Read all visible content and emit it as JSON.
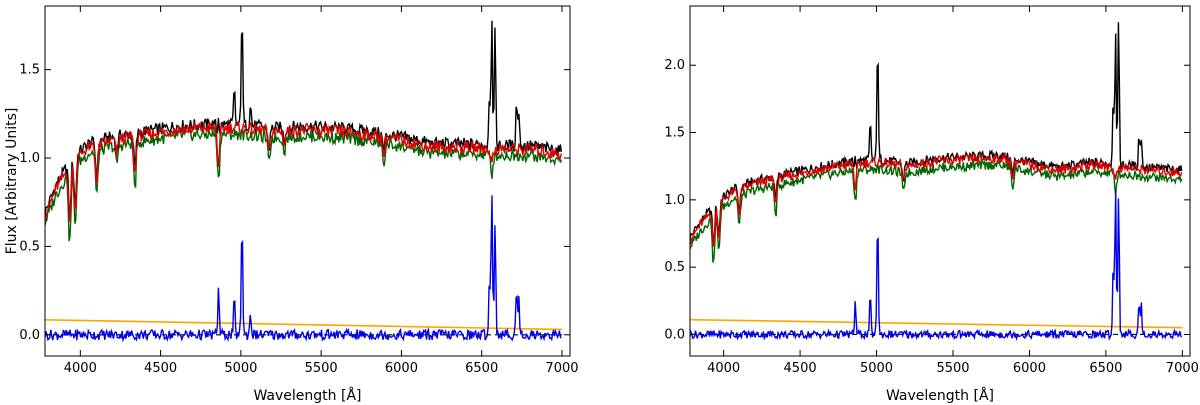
{
  "chart_data": [
    {
      "type": "line",
      "xlabel": "Wavelength [Å]",
      "ylabel": "Flux  [Arbitrary  Units]",
      "xlim": [
        3780,
        7050
      ],
      "ylim": [
        -0.12,
        1.86
      ],
      "xticks": [
        4000,
        4500,
        5000,
        5500,
        6000,
        6500,
        7000
      ],
      "yticks": [
        0.0,
        0.5,
        1.0,
        1.5
      ],
      "ytick_labels": [
        "0.0",
        "0.5",
        "1.0",
        "1.5"
      ],
      "continuum": {
        "x": [
          3780,
          3850,
          3950,
          4050,
          4200,
          4400,
          4600,
          4800,
          5000,
          5200,
          5400,
          5600,
          5800,
          6000,
          6200,
          6400,
          6600,
          6800,
          7000
        ],
        "y": [
          0.67,
          0.83,
          0.98,
          1.06,
          1.1,
          1.13,
          1.16,
          1.17,
          1.17,
          1.15,
          1.16,
          1.15,
          1.13,
          1.1,
          1.06,
          1.06,
          1.05,
          1.05,
          1.02
        ]
      },
      "absorption": [
        [
          3934,
          0.4
        ],
        [
          3968,
          0.35
        ],
        [
          4102,
          0.25
        ],
        [
          4226,
          0.1
        ],
        [
          4340,
          0.25
        ],
        [
          4861,
          0.25
        ],
        [
          5175,
          0.15
        ],
        [
          5270,
          0.08
        ],
        [
          5890,
          0.12
        ],
        [
          6563,
          0.1
        ]
      ],
      "emission": [
        [
          3727,
          0.2
        ],
        [
          4861,
          0.26
        ],
        [
          4959,
          0.2
        ],
        [
          5007,
          0.67
        ],
        [
          5060,
          0.13
        ],
        [
          6548,
          0.3
        ],
        [
          6563,
          0.83
        ],
        [
          6583,
          0.65
        ],
        [
          6717,
          0.26
        ],
        [
          6731,
          0.2
        ]
      ],
      "baseline": {
        "x": [
          3780,
          7000
        ],
        "y": [
          0.085,
          0.03
        ]
      },
      "series": [
        {
          "key": "observed",
          "color": "#000000",
          "offset": 0.02
        },
        {
          "key": "model_red",
          "color": "#e00000",
          "offset": 0.0
        },
        {
          "key": "model_green",
          "color": "#006400",
          "offset": -0.035
        },
        {
          "key": "residual",
          "color": "#0000e6"
        },
        {
          "key": "baseline",
          "color": "#ffa500"
        }
      ],
      "grid": false,
      "legend": "none"
    },
    {
      "type": "line",
      "xlabel": "Wavelength [Å]",
      "ylabel": "",
      "xlim": [
        3780,
        7050
      ],
      "ylim": [
        -0.16,
        2.44
      ],
      "xticks": [
        4000,
        4500,
        5000,
        5500,
        6000,
        6500,
        7000
      ],
      "yticks": [
        0.0,
        0.5,
        1.0,
        1.5,
        2.0
      ],
      "ytick_labels": [
        "0.0",
        "0.5",
        "1.0",
        "1.5",
        "2.0"
      ],
      "continuum": {
        "x": [
          3780,
          3850,
          3950,
          4050,
          4200,
          4400,
          4600,
          4800,
          5000,
          5200,
          5400,
          5600,
          5800,
          6000,
          6200,
          6400,
          6600,
          6800,
          7000
        ],
        "y": [
          0.7,
          0.82,
          0.95,
          1.05,
          1.12,
          1.17,
          1.22,
          1.26,
          1.28,
          1.25,
          1.29,
          1.3,
          1.31,
          1.26,
          1.22,
          1.26,
          1.24,
          1.22,
          1.2
        ]
      },
      "absorption": [
        [
          3934,
          0.35
        ],
        [
          3968,
          0.3
        ],
        [
          4102,
          0.22
        ],
        [
          4340,
          0.22
        ],
        [
          4861,
          0.22
        ],
        [
          5175,
          0.15
        ],
        [
          5890,
          0.15
        ],
        [
          6563,
          0.12
        ]
      ],
      "emission": [
        [
          3727,
          0.14
        ],
        [
          4861,
          0.24
        ],
        [
          4959,
          0.28
        ],
        [
          5007,
          0.9
        ],
        [
          6548,
          0.5
        ],
        [
          6563,
          1.12
        ],
        [
          6583,
          1.05
        ],
        [
          6717,
          0.24
        ],
        [
          6731,
          0.22
        ]
      ],
      "baseline": {
        "x": [
          3780,
          7000
        ],
        "y": [
          0.11,
          0.05
        ]
      },
      "series": [
        {
          "key": "observed",
          "color": "#000000",
          "offset": 0.02
        },
        {
          "key": "model_red",
          "color": "#e00000",
          "offset": 0.0
        },
        {
          "key": "model_green",
          "color": "#006400",
          "offset": -0.05
        },
        {
          "key": "residual",
          "color": "#0000e6"
        },
        {
          "key": "baseline",
          "color": "#ffa500"
        }
      ],
      "grid": false,
      "legend": "none"
    }
  ]
}
